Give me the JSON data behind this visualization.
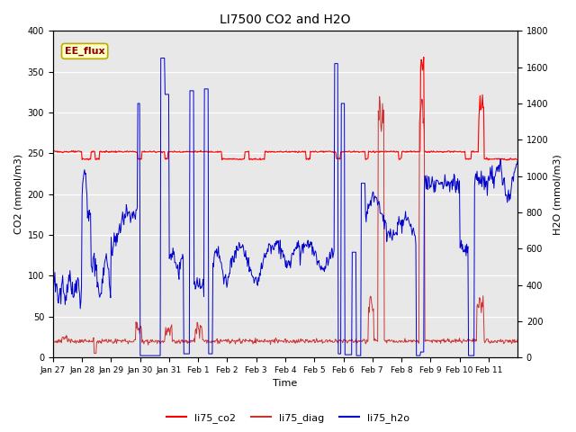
{
  "title": "LI7500 CO2 and H2O",
  "xlabel": "Time",
  "ylabel_left": "CO2 (mmol/m3)",
  "ylabel_right": "H2O (mmol/m3)",
  "ylim_left": [
    0,
    400
  ],
  "ylim_right": [
    0,
    1800
  ],
  "annotation_text": "EE_flux",
  "annotation_bbox_facecolor": "#ffffcc",
  "annotation_bbox_edgecolor": "#bbaa00",
  "line_co2_color": "#ff0000",
  "line_diag_color": "#cc3333",
  "line_h2o_color": "#0000cc",
  "bg_color": "#e8e8e8",
  "legend_labels": [
    "li75_co2",
    "li75_diag",
    "li75_h2o"
  ],
  "xtick_labels": [
    "Jan 27",
    "Jan 28",
    "Jan 29",
    "Jan 30",
    "Jan 31",
    "Feb 1",
    "Feb 2",
    "Feb 3",
    "Feb 4",
    "Feb 5",
    "Feb 6",
    "Feb 7",
    "Feb 8",
    "Feb 9",
    "Feb 10",
    "Feb 11"
  ],
  "yticks_left": [
    0,
    50,
    100,
    150,
    200,
    250,
    300,
    350,
    400
  ],
  "yticks_right": [
    0,
    200,
    400,
    600,
    800,
    1000,
    1200,
    1400,
    1600,
    1800
  ],
  "figsize": [
    6.4,
    4.8
  ],
  "dpi": 100
}
